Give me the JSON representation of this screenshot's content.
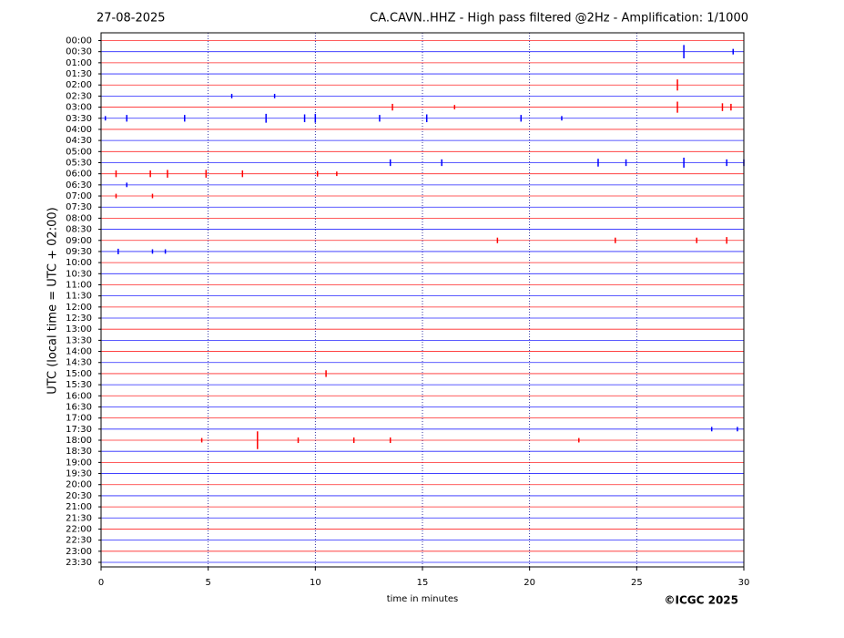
{
  "chart_data": {
    "type": "helicorder",
    "date": "27-08-2025",
    "title": "CA.CAVN..HHZ - High pass filtered @2Hz - Amplification: 1/1000",
    "ylabel": "UTC (local time = UTC + 02:00)",
    "xlabel": "time in minutes",
    "credit": "©ICGC 2025",
    "categories": [
      "00:00",
      "00:30",
      "01:00",
      "01:30",
      "02:00",
      "02:30",
      "03:00",
      "03:30",
      "04:00",
      "04:30",
      "05:00",
      "05:30",
      "06:00",
      "06:30",
      "07:00",
      "07:30",
      "08:00",
      "08:30",
      "09:00",
      "09:30",
      "10:00",
      "10:30",
      "11:00",
      "11:30",
      "12:00",
      "12:30",
      "13:00",
      "13:30",
      "14:00",
      "14:30",
      "15:00",
      "15:30",
      "16:00",
      "16:30",
      "17:00",
      "17:30",
      "18:00",
      "18:30",
      "19:00",
      "19:30",
      "20:00",
      "20:30",
      "21:00",
      "21:30",
      "22:00",
      "22:30",
      "23:00",
      "23:30"
    ],
    "colors": [
      "#ff0000",
      "#0000ff"
    ],
    "xlim": [
      0,
      30
    ],
    "xticks": [
      0,
      5,
      10,
      15,
      20,
      25,
      30
    ],
    "grid": true,
    "events": {
      "row": [
        1,
        1,
        4,
        5,
        5,
        6,
        6,
        6,
        6,
        6,
        7,
        7,
        7,
        7,
        7,
        7,
        7,
        7,
        7,
        7,
        11,
        11,
        11,
        11,
        11,
        11,
        11,
        12,
        12,
        12,
        12,
        12,
        12,
        12,
        13,
        14,
        14,
        18,
        18,
        18,
        18,
        19,
        19,
        19,
        30,
        35,
        35,
        36,
        36,
        36,
        36,
        36,
        36
      ],
      "x": [
        27.2,
        29.5,
        26.9,
        6.1,
        8.1,
        13.6,
        16.5,
        26.9,
        29.0,
        29.4,
        0.2,
        1.2,
        3.9,
        7.7,
        9.5,
        10.0,
        13.0,
        15.2,
        19.6,
        21.5,
        13.5,
        15.9,
        23.2,
        24.5,
        27.2,
        29.2,
        30,
        0.7,
        2.3,
        3.1,
        4.9,
        6.6,
        10.1,
        11.0,
        1.2,
        0.7,
        2.4,
        18.5,
        24.0,
        27.8,
        29.2,
        0.8,
        2.4,
        3.0,
        10.5,
        28.5,
        29.7,
        7.3,
        4.7,
        9.2,
        11.8,
        13.5,
        22.3
      ],
      "amplitude": [
        0.6,
        0.25,
        0.5,
        0.2,
        0.2,
        0.3,
        0.2,
        0.5,
        0.35,
        0.3,
        0.2,
        0.3,
        0.3,
        0.4,
        0.35,
        0.4,
        0.3,
        0.35,
        0.3,
        0.2,
        0.3,
        0.3,
        0.35,
        0.3,
        0.45,
        0.3,
        0.3,
        0.3,
        0.3,
        0.35,
        0.35,
        0.3,
        0.25,
        0.2,
        0.2,
        0.2,
        0.2,
        0.25,
        0.25,
        0.25,
        0.3,
        0.25,
        0.2,
        0.2,
        0.3,
        0.2,
        0.2,
        0.8,
        0.2,
        0.25,
        0.25,
        0.25,
        0.2
      ]
    }
  }
}
